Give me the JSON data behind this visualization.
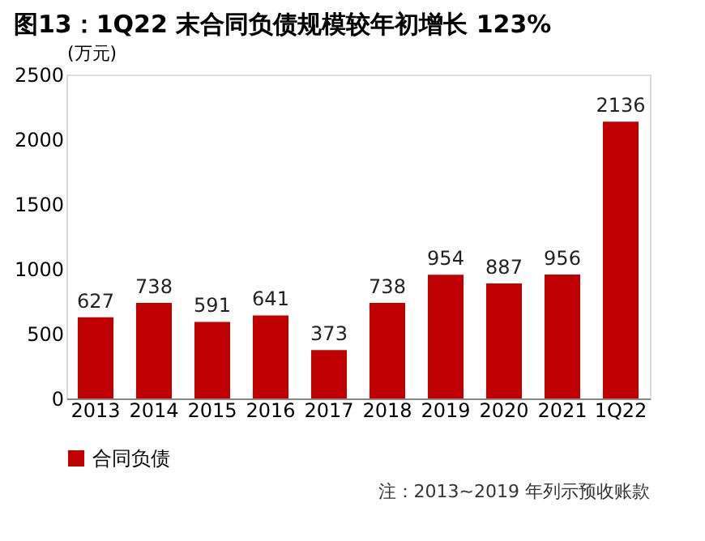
{
  "chart_data": {
    "type": "bar",
    "title": "图13：1Q22 末合同负债规模较年初增长 123%",
    "ylabel": "(万元)",
    "categories": [
      "2013",
      "2014",
      "2015",
      "2016",
      "2017",
      "2018",
      "2019",
      "2020",
      "2021",
      "1Q22"
    ],
    "series": [
      {
        "name": "合同负债",
        "color": "#c00000",
        "values": [
          627,
          738,
          591,
          641,
          373,
          738,
          954,
          887,
          956,
          2136
        ]
      }
    ],
    "ylim": [
      0,
      2500
    ],
    "yticks": [
      0,
      500,
      1000,
      1500,
      2000,
      2500
    ],
    "grid": false,
    "legend": "bottom",
    "data_labels": true,
    "annotations": [
      "注：2013~2019 年列示预收账款"
    ]
  }
}
